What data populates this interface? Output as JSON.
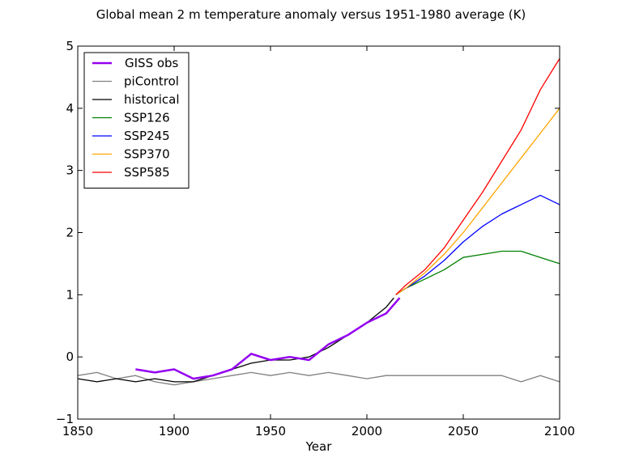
{
  "chart_data": {
    "type": "line",
    "title": "Global mean 2 m temperature anomaly versus 1951-1980 average (K)",
    "xlabel": "Year",
    "ylabel": "",
    "xlim": [
      1850,
      2100
    ],
    "ylim": [
      -1,
      5
    ],
    "xticks": [
      1850,
      1900,
      1950,
      2000,
      2050,
      2100
    ],
    "yticks": [
      -1,
      0,
      1,
      2,
      3,
      4,
      5
    ],
    "grid": false,
    "legend": "top-left",
    "series": [
      {
        "name": "piControl",
        "color": "#808080",
        "x": [
          1850,
          1860,
          1870,
          1880,
          1890,
          1900,
          1910,
          1920,
          1930,
          1940,
          1950,
          1960,
          1970,
          1980,
          1990,
          2000,
          2010,
          2020,
          2030,
          2040,
          2050,
          2060,
          2070,
          2080,
          2090,
          2100
        ],
        "y": [
          -0.3,
          -0.25,
          -0.35,
          -0.3,
          -0.4,
          -0.45,
          -0.4,
          -0.35,
          -0.3,
          -0.25,
          -0.3,
          -0.25,
          -0.3,
          -0.25,
          -0.3,
          -0.35,
          -0.3,
          -0.3,
          -0.3,
          -0.3,
          -0.3,
          -0.3,
          -0.3,
          -0.4,
          -0.3,
          -0.4
        ]
      },
      {
        "name": "historical",
        "color": "#000000",
        "x": [
          1850,
          1860,
          1870,
          1880,
          1890,
          1900,
          1910,
          1920,
          1930,
          1940,
          1950,
          1960,
          1970,
          1980,
          1990,
          2000,
          2010,
          2014
        ],
        "y": [
          -0.35,
          -0.4,
          -0.35,
          -0.4,
          -0.35,
          -0.4,
          -0.4,
          -0.3,
          -0.2,
          -0.1,
          -0.05,
          -0.05,
          0.0,
          0.15,
          0.35,
          0.55,
          0.8,
          0.95
        ]
      },
      {
        "name": "GISS obs",
        "color": "#9400f0",
        "x": [
          1880,
          1890,
          1900,
          1910,
          1920,
          1930,
          1940,
          1950,
          1960,
          1970,
          1980,
          1990,
          2000,
          2010,
          2017
        ],
        "y": [
          -0.2,
          -0.25,
          -0.2,
          -0.35,
          -0.3,
          -0.2,
          0.05,
          -0.05,
          0.0,
          -0.05,
          0.2,
          0.35,
          0.55,
          0.7,
          0.95
        ]
      },
      {
        "name": "SSP126",
        "color": "#008000",
        "x": [
          2015,
          2020,
          2030,
          2040,
          2050,
          2060,
          2070,
          2080,
          2090,
          2100
        ],
        "y": [
          1.0,
          1.1,
          1.25,
          1.4,
          1.6,
          1.65,
          1.7,
          1.7,
          1.6,
          1.5
        ]
      },
      {
        "name": "SSP245",
        "color": "#0000ff",
        "x": [
          2015,
          2020,
          2030,
          2040,
          2050,
          2060,
          2070,
          2080,
          2090,
          2100
        ],
        "y": [
          1.0,
          1.1,
          1.3,
          1.55,
          1.85,
          2.1,
          2.3,
          2.45,
          2.6,
          2.45
        ]
      },
      {
        "name": "SSP370",
        "color": "#ffa500",
        "x": [
          2015,
          2020,
          2030,
          2040,
          2050,
          2060,
          2070,
          2080,
          2090,
          2100
        ],
        "y": [
          1.0,
          1.1,
          1.35,
          1.65,
          2.0,
          2.4,
          2.8,
          3.2,
          3.6,
          4.0
        ]
      },
      {
        "name": "SSP585",
        "color": "#ff0000",
        "x": [
          2015,
          2020,
          2030,
          2040,
          2050,
          2060,
          2070,
          2080,
          2090,
          2100
        ],
        "y": [
          1.0,
          1.15,
          1.4,
          1.75,
          2.2,
          2.65,
          3.15,
          3.65,
          4.3,
          4.8
        ]
      }
    ],
    "legend_entries": [
      {
        "name": "GISS obs",
        "color": "#9400f0"
      },
      {
        "name": "piControl",
        "color": "#808080"
      },
      {
        "name": "historical",
        "color": "#000000"
      },
      {
        "name": "SSP126",
        "color": "#008000"
      },
      {
        "name": "SSP245",
        "color": "#0000ff"
      },
      {
        "name": "SSP370",
        "color": "#ffa500"
      },
      {
        "name": "SSP585",
        "color": "#ff0000"
      }
    ]
  }
}
